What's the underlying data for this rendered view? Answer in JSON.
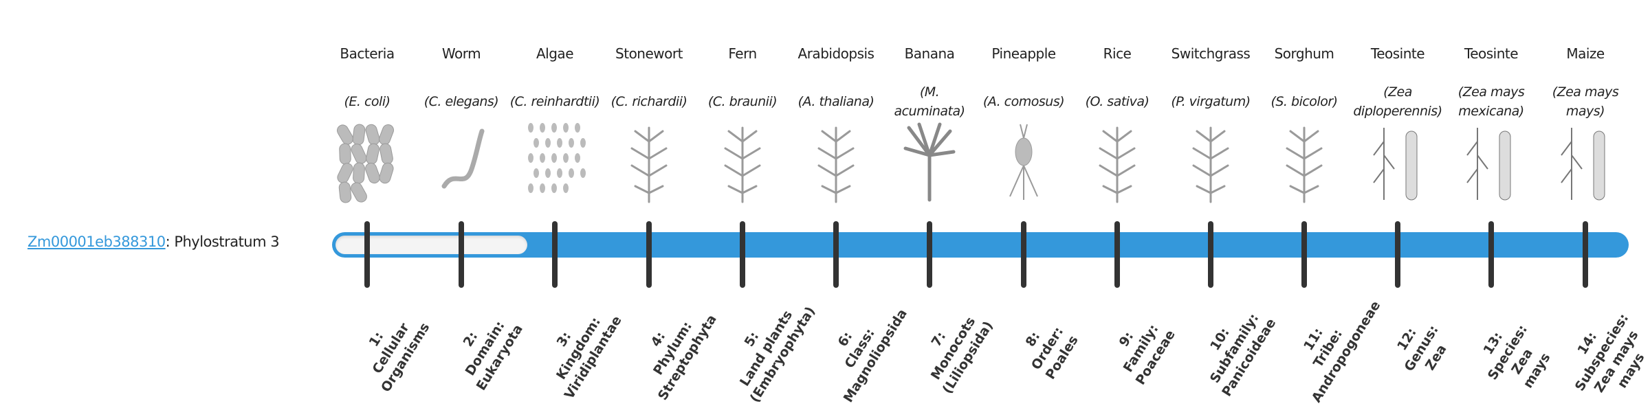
{
  "gene": {
    "id": "Zm00001eb388310",
    "suffix": ": Phylostratum 3",
    "phylostratum": 3,
    "total_strata": 14
  },
  "colors": {
    "accent": "#3498db",
    "tick": "#333333",
    "empty": "#f4f4f4"
  },
  "organisms": [
    {
      "name": "Bacteria",
      "species": "(E. coli)",
      "icon": "bacteria-illustration"
    },
    {
      "name": "Worm",
      "species": "(C. elegans)",
      "icon": "worm-illustration"
    },
    {
      "name": "Algae",
      "species": "(C. reinhardtii)",
      "icon": "algae-illustration"
    },
    {
      "name": "Stonewort",
      "species": "(C. richardii)",
      "icon": "stonewort-illustration"
    },
    {
      "name": "Fern",
      "species": "(C. braunii)",
      "icon": "fern-illustration"
    },
    {
      "name": "Arabidopsis",
      "species": "(A. thaliana)",
      "icon": "arabidopsis-illustration"
    },
    {
      "name": "Banana",
      "species": "(M. acuminata)",
      "icon": "banana-illustration"
    },
    {
      "name": "Pineapple",
      "species": "(A. comosus)",
      "icon": "pineapple-illustration"
    },
    {
      "name": "Rice",
      "species": "(O. sativa)",
      "icon": "rice-illustration"
    },
    {
      "name": "Switchgrass",
      "species": "(P. virgatum)",
      "icon": "switchgrass-illustration"
    },
    {
      "name": "Sorghum",
      "species": "(S. bicolor)",
      "icon": "sorghum-illustration"
    },
    {
      "name": "Teosinte",
      "species": "(Zea diploperennis)",
      "icon": "teosinte-illustration"
    },
    {
      "name": "Teosinte",
      "species": "(Zea mays mexicana)",
      "icon": "teosinte-illustration"
    },
    {
      "name": "Maize",
      "species": "(Zea mays mays)",
      "icon": "maize-illustration"
    }
  ],
  "strata": [
    "1:\nCellular\nOrganisms",
    "2:\nDomain:\nEukaryota",
    "3:\nKingdom:\nViridiplantae",
    "4:\nPhylum:\nStreptophyta",
    "5:\nLand plants\n(Embryophyta)",
    "6:\nClass:\nMagnoliopsida",
    "7:\nMonocots\n(Liliopsida)",
    "8:\nOrder:\nPoales",
    "9:\nFamily:\nPoaceae",
    "10:\nSubfamily:\nPanicoideae",
    "11:\nTribe:\nAndropogoneae",
    "12:\nGenus:\nZea",
    "13:\nSpecies:\nZea\nmays",
    "14:\nSubspecies:\nZea mays\nmays"
  ]
}
